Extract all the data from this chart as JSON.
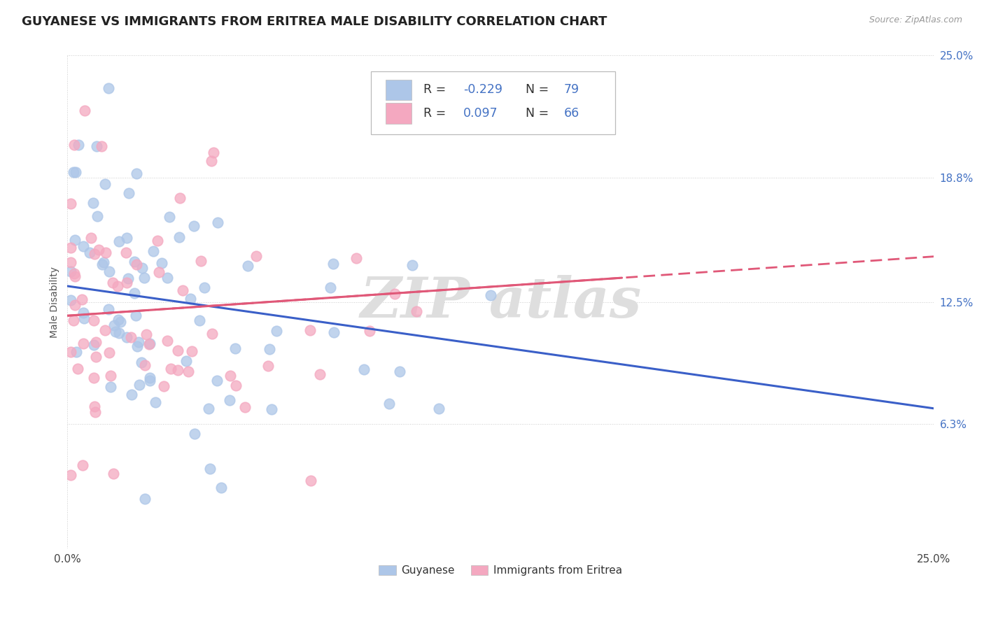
{
  "title": "GUYANESE VS IMMIGRANTS FROM ERITREA MALE DISABILITY CORRELATION CHART",
  "source": "Source: ZipAtlas.com",
  "ylabel": "Male Disability",
  "xlim": [
    0.0,
    0.25
  ],
  "ylim": [
    0.0,
    0.25
  ],
  "xtick_labels": [
    "0.0%",
    "25.0%"
  ],
  "ytick_labels": [
    "6.3%",
    "12.5%",
    "18.8%",
    "25.0%"
  ],
  "ytick_values": [
    0.063,
    0.125,
    0.188,
    0.25
  ],
  "blue_R": -0.229,
  "blue_N": 79,
  "pink_R": 0.097,
  "pink_N": 66,
  "blue_color": "#adc6e8",
  "pink_color": "#f4a8c0",
  "blue_line_color": "#3a5fc8",
  "pink_line_color": "#e05878",
  "legend_label_blue": "Guyanese",
  "legend_label_pink": "Immigrants from Eritrea",
  "background_color": "#ffffff",
  "grid_color": "#cccccc",
  "title_fontsize": 13,
  "label_fontsize": 10,
  "tick_fontsize": 11,
  "blue_trend_x0": 0.0,
  "blue_trend_y0": 0.133,
  "blue_trend_x1": 0.25,
  "blue_trend_y1": 0.071,
  "pink_trend_x0": 0.0,
  "pink_trend_y0": 0.118,
  "pink_trend_x1": 0.25,
  "pink_trend_y1": 0.148
}
